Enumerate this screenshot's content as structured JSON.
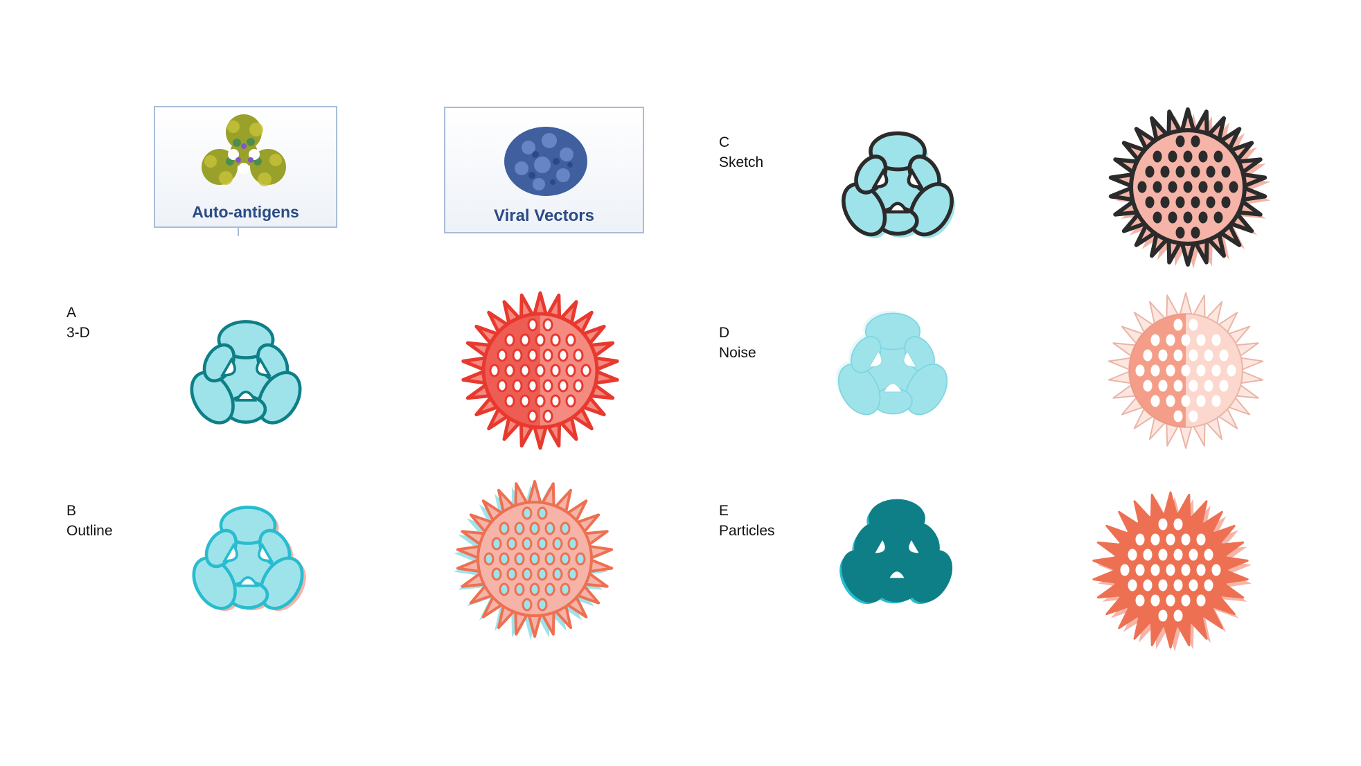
{
  "reference_cards": {
    "auto_antigens": "Auto-antigens",
    "viral_vectors": "Viral Vectors"
  },
  "styles": [
    {
      "letter": "A",
      "name": "3-D"
    },
    {
      "letter": "B",
      "name": "Outline"
    },
    {
      "letter": "C",
      "name": "Sketch"
    },
    {
      "letter": "D",
      "name": "Noise"
    },
    {
      "letter": "E",
      "name": "Particles"
    }
  ],
  "colors": {
    "teal": "#0e7f86",
    "cyan_light": "#9fe3ea",
    "cyan_bright": "#28bccf",
    "red": "#e8392f",
    "coral": "#ee7052",
    "pink": "#f6b4a8",
    "navy_caption": "#2a4a82"
  }
}
